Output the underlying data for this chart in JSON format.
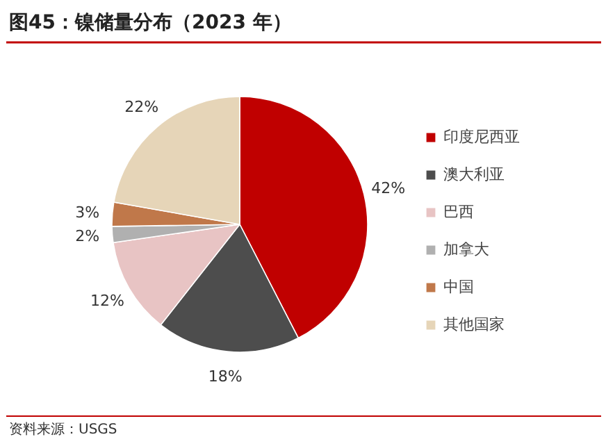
{
  "chart_data": {
    "type": "pie",
    "title": "图45：镍储量分布（2023 年）",
    "categories": [
      "印度尼西亚",
      "澳大利亚",
      "巴西",
      "加拿大",
      "中国",
      "其他国家"
    ],
    "values": [
      42,
      18,
      12,
      2,
      3,
      22
    ],
    "colors": [
      "#c00000",
      "#4d4d4d",
      "#e8c4c4",
      "#b0b0b0",
      "#c0784a",
      "#e6d5b8"
    ],
    "value_labels": [
      "42%",
      "18%",
      "12%",
      "2%",
      "3%",
      "22%"
    ],
    "legend": "right",
    "annotations": [
      "资料来源：USGS"
    ]
  }
}
